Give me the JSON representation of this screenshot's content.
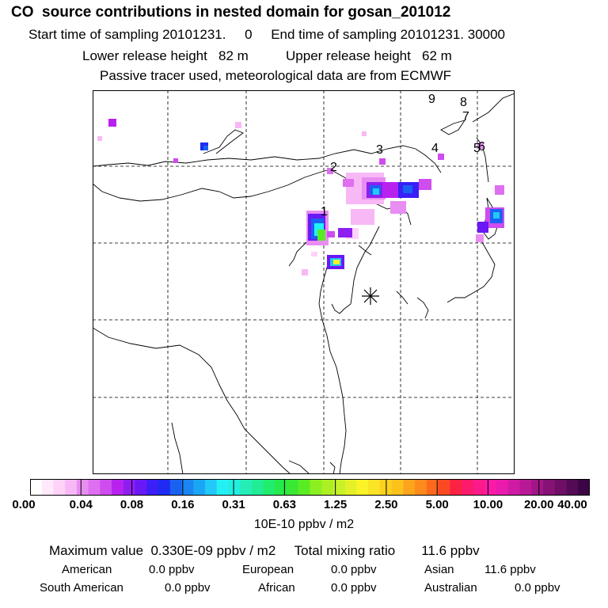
{
  "header": {
    "title": "CO  source contributions in nested domain for gosan_201012",
    "sampling_start": "Start time of sampling 20101231.     0",
    "sampling_end": "End time of sampling 20101231. 30000",
    "lower_release": "Lower release height   82 m",
    "upper_release": "Upper release height   62 m",
    "tracer_note": "Passive tracer used, meteorological data are from ECMWF"
  },
  "map": {
    "region_numbers": [
      "1",
      "2",
      "3",
      "4",
      "5",
      "6",
      "7",
      "8",
      "9"
    ],
    "receptor_symbol": "asterisk"
  },
  "colorbar": {
    "tick_labels": [
      "0.00",
      "0.04",
      "0.08",
      "0.16",
      "0.31",
      "0.63",
      "1.25",
      "2.50",
      "5.00",
      "10.00",
      "20.00",
      "40.00"
    ],
    "colors": [
      "#ffffff",
      "#ffe9fb",
      "#ffd2f8",
      "#f7b8f5",
      "#e88df2",
      "#dd6ff0",
      "#cf4cee",
      "#b822ee",
      "#8e1ef0",
      "#6a18f5",
      "#3a1ff7",
      "#1f2bf2",
      "#1a61f2",
      "#1b85f3",
      "#1aa6f5",
      "#22c8f8",
      "#22f0f5",
      "#22eee0",
      "#26edb8",
      "#22ec95",
      "#22ec6e",
      "#26e94a",
      "#3ae833",
      "#5aec22",
      "#8cef22",
      "#acef22",
      "#c8f12a",
      "#e4f128",
      "#fbf228",
      "#fbe326",
      "#fcd21f",
      "#fcc21c",
      "#fca51c",
      "#fc8a1c",
      "#fb6a1c",
      "#fb4a22",
      "#fb2244",
      "#fc1a6a",
      "#fc1a8a",
      "#fa1aa6",
      "#ea1aae",
      "#cf1aa3",
      "#b81896",
      "#a01686",
      "#861276",
      "#6e0e66",
      "#550a55",
      "#3c0545"
    ],
    "unit_label": "10E-10 ppbv / m2"
  },
  "summary": {
    "max_value": "Maximum value  0.330E-09 ppbv / m2",
    "total_mixing": "Total mixing ratio       11.6 ppbv",
    "american_label": "American",
    "american_value": "0.0 ppbv",
    "european_label": "European",
    "european_value": "0.0 ppbv",
    "asian_label": "Asian",
    "asian_value": "11.6 ppbv",
    "south_american_label": "South American",
    "south_american_value": "0.0 ppbv",
    "african_label": "African",
    "african_value": "0.0 ppbv",
    "australian_label": "Australian",
    "australian_value": "0.0 ppbv"
  }
}
